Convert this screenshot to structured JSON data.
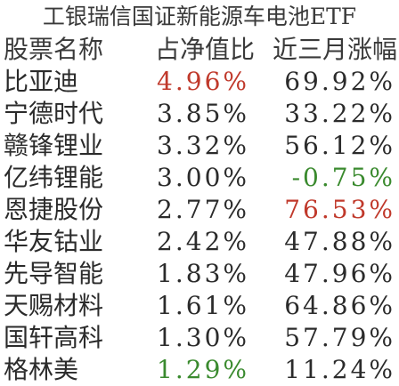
{
  "title": "工银瑞信国证新能源车电池ETF",
  "headers": {
    "name": "股票名称",
    "weight": "占净值比",
    "return": "近三月涨幅"
  },
  "rows": [
    {
      "name": "比亚迪",
      "weight": "4.96%",
      "return": "69.92%",
      "weight_color": "#c0392b",
      "return_color": "#2b2b2b"
    },
    {
      "name": "宁德时代",
      "weight": "3.85%",
      "return": "33.22%",
      "weight_color": "#2b2b2b",
      "return_color": "#2b2b2b"
    },
    {
      "name": "赣锋锂业",
      "weight": "3.32%",
      "return": "56.12%",
      "weight_color": "#2b2b2b",
      "return_color": "#2b2b2b"
    },
    {
      "name": "亿纬锂能",
      "weight": "3.00%",
      "return": "-0.75%",
      "weight_color": "#2b2b2b",
      "return_color": "#3a8a2e"
    },
    {
      "name": "恩捷股份",
      "weight": "2.77%",
      "return": "76.53%",
      "weight_color": "#2b2b2b",
      "return_color": "#c0392b"
    },
    {
      "name": "华友钴业",
      "weight": "2.42%",
      "return": "47.88%",
      "weight_color": "#2b2b2b",
      "return_color": "#2b2b2b"
    },
    {
      "name": "先导智能",
      "weight": "1.83%",
      "return": "47.96%",
      "weight_color": "#2b2b2b",
      "return_color": "#2b2b2b"
    },
    {
      "name": "天赐材料",
      "weight": "1.61%",
      "return": "64.86%",
      "weight_color": "#2b2b2b",
      "return_color": "#2b2b2b"
    },
    {
      "name": "国轩高科",
      "weight": "1.30%",
      "return": "57.79%",
      "weight_color": "#2b2b2b",
      "return_color": "#2b2b2b"
    },
    {
      "name": "格林美",
      "weight": "1.29%",
      "return": "11.24%",
      "weight_color": "#3a8a2e",
      "return_color": "#2b2b2b"
    }
  ]
}
